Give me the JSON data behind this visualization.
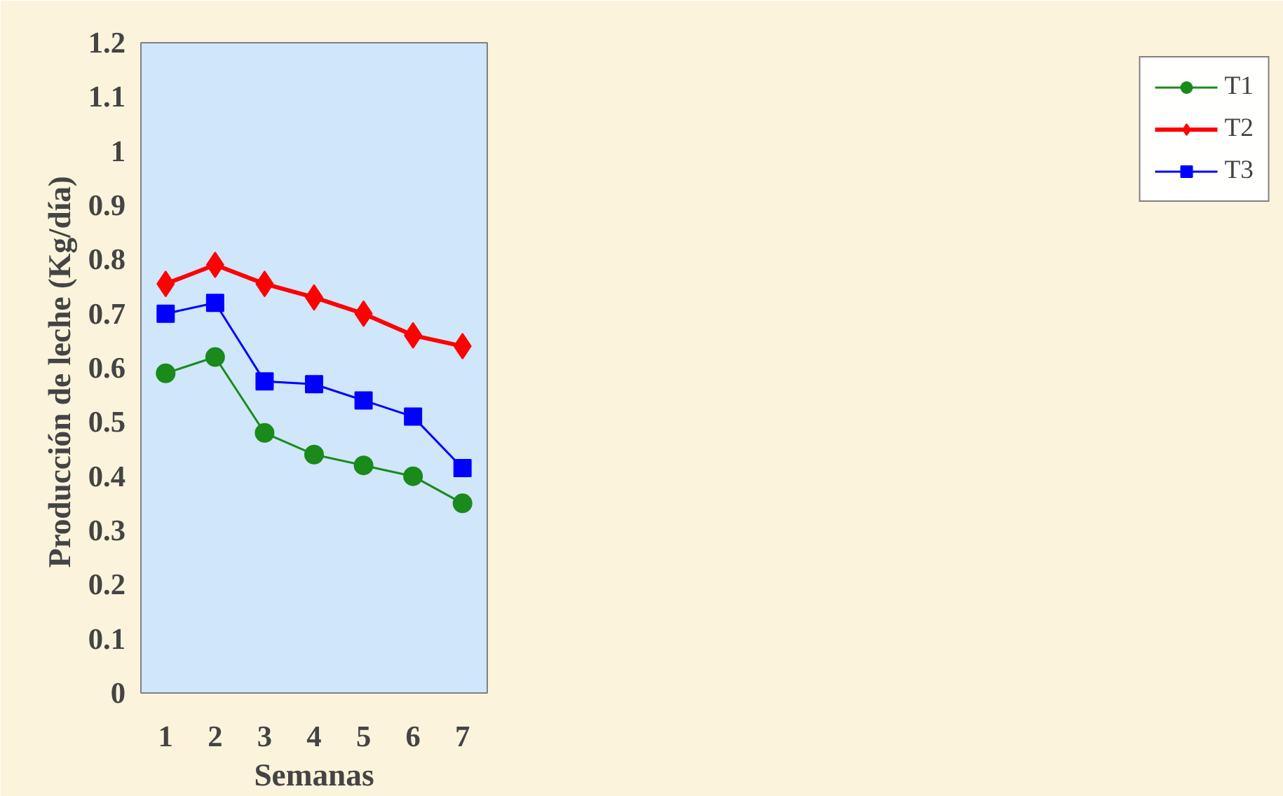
{
  "chart_data": {
    "type": "line",
    "xlabel": "Semanas",
    "ylabel": "Producción de  leche (Kg/día)",
    "categories": [
      "1",
      "2",
      "3",
      "4",
      "5",
      "6",
      "7"
    ],
    "series": [
      {
        "name": "T1",
        "color": "#1a8a1a",
        "marker": "circle",
        "values": [
          0.59,
          0.62,
          0.48,
          0.44,
          0.42,
          0.4,
          0.35
        ]
      },
      {
        "name": "T2",
        "color": "#ff0000",
        "marker": "diamond",
        "values": [
          0.755,
          0.79,
          0.755,
          0.73,
          0.7,
          0.66,
          0.64
        ]
      },
      {
        "name": "T3",
        "color": "#0000ff",
        "marker": "square",
        "values": [
          0.7,
          0.72,
          0.575,
          0.57,
          0.54,
          0.51,
          0.415
        ]
      }
    ],
    "ylim": [
      0,
      1.2
    ],
    "yticks": [
      0,
      0.1,
      0.2,
      0.3,
      0.4,
      0.5,
      0.6,
      0.7,
      0.8,
      0.9,
      1,
      1.1,
      1.2
    ],
    "grid": false,
    "legend": "right"
  }
}
